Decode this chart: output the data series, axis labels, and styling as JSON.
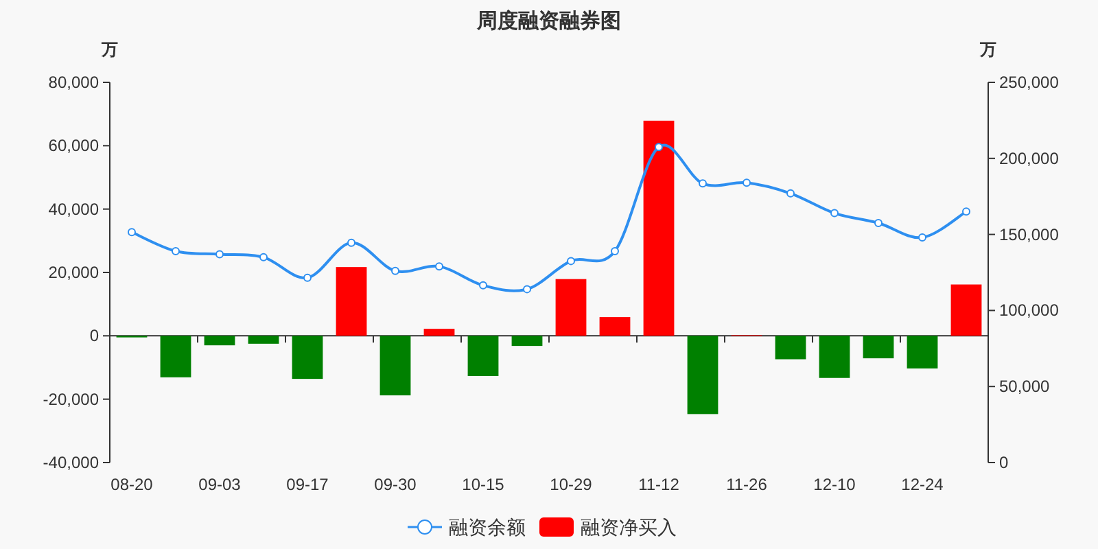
{
  "chart_data": {
    "type": "bar",
    "title": "周度融资融券图",
    "ylabel": "万",
    "y2label": "万",
    "categories": [
      "08-20",
      null,
      "09-03",
      null,
      "09-17",
      null,
      "09-30",
      null,
      "10-15",
      null,
      "10-29",
      null,
      "11-12",
      null,
      "11-26",
      null,
      "12-10",
      null,
      "12-24",
      null
    ],
    "ylim": [
      -40000,
      80000
    ],
    "yticks": [
      {
        "value": -40000,
        "label": "-40,000"
      },
      {
        "value": -20000,
        "label": "-20,000"
      },
      0,
      {
        "value": 20000,
        "label": "20,000"
      },
      {
        "value": 40000,
        "label": "40,000"
      },
      {
        "value": 60000,
        "label": "60,000"
      },
      {
        "value": 80000,
        "label": "80,000"
      }
    ],
    "y2lim": [
      0,
      250000
    ],
    "y2ticks": [
      0,
      {
        "value": 50000,
        "label": "50,000"
      },
      {
        "value": 100000,
        "label": "100,000"
      },
      {
        "value": 150000,
        "label": "150,000"
      },
      {
        "value": 200000,
        "label": "200,000"
      },
      {
        "value": 250000,
        "label": "250,000"
      }
    ],
    "legend": "bottom",
    "marker": "circle",
    "series": [
      {
        "name": "融资净买入",
        "color": "#ff0000",
        "values": [
          -500,
          -13100,
          -3000,
          -2500,
          -13600,
          21700,
          -18800,
          2200,
          -12700,
          -3200,
          17900,
          5900,
          67900,
          -24700,
          200,
          -7400,
          -13300,
          -7100,
          -10300,
          16200
        ],
        "colors": [
          "#008000",
          "#008000",
          "#008000",
          "#008000",
          "#008000",
          "#ff0000",
          "#008000",
          "#ff0000",
          "#008000",
          "#008000",
          "#ff0000",
          "#ff0000",
          "#ff0000",
          "#008000",
          "#ff0000",
          "#008000",
          "#008000",
          "#008000",
          "#008000",
          "#ff0000"
        ]
      },
      {
        "name": "融资余额",
        "type": "line",
        "axis": "y2",
        "color": "#2e8ff0",
        "values": [
          151500,
          139000,
          137000,
          135000,
          121500,
          144500,
          126000,
          129000,
          116500,
          114000,
          132500,
          139000,
          207500,
          183500,
          184000,
          177000,
          164000,
          157500,
          148000,
          165000
        ]
      }
    ]
  }
}
